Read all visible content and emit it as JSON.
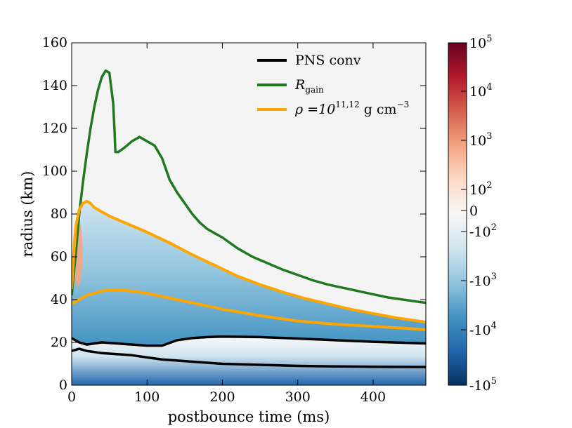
{
  "chart_data": {
    "type": "line",
    "xlabel": "postbounce time (ms)",
    "ylabel": "radius (km)",
    "xlim": [
      0,
      470
    ],
    "ylim": [
      0,
      160
    ],
    "xticks": [
      "0",
      "100",
      "200",
      "300",
      "400"
    ],
    "xtick_values": [
      0,
      100,
      200,
      300,
      400
    ],
    "yticks": [
      "0",
      "20",
      "40",
      "60",
      "80",
      "100",
      "120",
      "140",
      "160"
    ],
    "ytick_values": [
      0,
      20,
      40,
      60,
      80,
      100,
      120,
      140,
      160
    ],
    "legend_placement": "top-right",
    "legend": [
      {
        "label": "PNS conv",
        "color": "#000000"
      },
      {
        "label": "R",
        "sub": "gain",
        "color": "#1f7a1f"
      },
      {
        "label": "ρ =10",
        "sup": "11,12",
        "tail": " g cm",
        "tailsup": "−3",
        "color": "#ffa500"
      }
    ],
    "colorbar": {
      "scale": "symlog",
      "ticks": [
        {
          "base": "10",
          "exp": "5",
          "value": 100000
        },
        {
          "base": "10",
          "exp": "4",
          "value": 10000
        },
        {
          "base": "10",
          "exp": "3",
          "value": 1000
        },
        {
          "base": "10",
          "exp": "2",
          "value": 100
        },
        {
          "base": "0",
          "exp": "",
          "value": 0
        },
        {
          "base": "-10",
          "exp": "2",
          "value": -100
        },
        {
          "base": "-10",
          "exp": "3",
          "value": -1000
        },
        {
          "base": "-10",
          "exp": "4",
          "value": -10000
        },
        {
          "base": "-10",
          "exp": "5",
          "value": -100000
        }
      ],
      "colors": [
        "#67001f",
        "#b2182b",
        "#d6604d",
        "#f4a582",
        "#fddbc7",
        "#f7f7f7",
        "#d1e5f0",
        "#92c5de",
        "#4393c3",
        "#2166ac",
        "#053061"
      ]
    },
    "series": [
      {
        "name": "R_gain",
        "color": "#1f7a1f",
        "x": [
          0,
          5,
          10,
          15,
          20,
          25,
          30,
          35,
          40,
          45,
          50,
          55,
          57,
          58,
          62,
          70,
          80,
          90,
          95,
          100,
          110,
          120,
          130,
          140,
          150,
          160,
          170,
          180,
          190,
          200,
          220,
          240,
          260,
          280,
          300,
          320,
          340,
          360,
          380,
          400,
          420,
          440,
          460,
          470
        ],
        "y": [
          42,
          60,
          80,
          95,
          108,
          120,
          130,
          138,
          144,
          147,
          146,
          132,
          118,
          109,
          109,
          111,
          114,
          116,
          115,
          114,
          112,
          106,
          96,
          90,
          85,
          80,
          76,
          73,
          71,
          69,
          64,
          60,
          57,
          54,
          51.5,
          49,
          47,
          45.5,
          44,
          42.5,
          41,
          40,
          39,
          38.5
        ]
      },
      {
        "name": "rho 1e11",
        "color": "#ffa500",
        "x": [
          0,
          3,
          6,
          10,
          15,
          20,
          25,
          30,
          40,
          50,
          70,
          100,
          130,
          160,
          190,
          220,
          250,
          280,
          310,
          340,
          370,
          400,
          430,
          470
        ],
        "y": [
          45,
          62,
          75,
          82,
          85,
          86,
          85,
          83,
          81,
          79,
          76,
          71.5,
          66.5,
          61,
          56,
          51,
          47,
          43.5,
          40.5,
          38,
          35.5,
          33.5,
          31.5,
          29.5
        ]
      },
      {
        "name": "rho 1e12",
        "color": "#ffa500",
        "x": [
          0,
          10,
          20,
          30,
          40,
          50,
          60,
          80,
          100,
          120,
          140,
          160,
          180,
          200,
          250,
          300,
          350,
          400,
          470
        ],
        "y": [
          38,
          40,
          42,
          43,
          44,
          44.5,
          44.5,
          44,
          43,
          41.5,
          40,
          38.5,
          37,
          35.5,
          32.5,
          30,
          28.5,
          27.5,
          26
        ]
      },
      {
        "name": "PNS conv outer",
        "color": "#000000",
        "x": [
          0,
          10,
          20,
          30,
          40,
          60,
          80,
          100,
          120,
          140,
          160,
          180,
          200,
          250,
          300,
          350,
          400,
          470
        ],
        "y": [
          22,
          20,
          19,
          19.5,
          20,
          19.5,
          19,
          18.5,
          18.5,
          21,
          22,
          22.5,
          22.7,
          22.5,
          21.8,
          21,
          20.3,
          19.5
        ]
      },
      {
        "name": "PNS conv inner",
        "color": "#000000",
        "x": [
          0,
          10,
          20,
          30,
          40,
          60,
          80,
          100,
          120,
          140,
          160,
          180,
          200,
          250,
          300,
          350,
          400,
          470
        ],
        "y": [
          16,
          17,
          16,
          15.5,
          15,
          14.5,
          14,
          13,
          12,
          11.5,
          11,
          10.5,
          10,
          9.5,
          9,
          8.8,
          8.6,
          8.5
        ]
      }
    ]
  }
}
